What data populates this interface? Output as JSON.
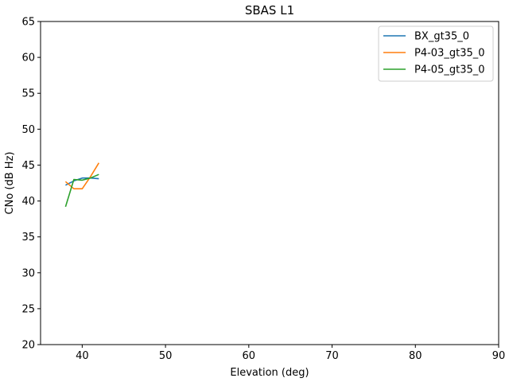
{
  "chart_data": {
    "type": "line",
    "title": "SBAS L1",
    "xlabel": "Elevation (deg)",
    "ylabel": "CNo (dB Hz)",
    "xlim": [
      35,
      90
    ],
    "ylim": [
      20,
      65
    ],
    "xticks": [
      40,
      50,
      60,
      70,
      80,
      90
    ],
    "yticks": [
      20,
      25,
      30,
      35,
      40,
      45,
      50,
      55,
      60,
      65
    ],
    "grid": false,
    "legend_position": "top-right",
    "series": [
      {
        "name": "BX_gt35_0",
        "color": "#1f77b4",
        "x": [
          38,
          39,
          40,
          41,
          42
        ],
        "y": [
          42.2,
          42.8,
          43.2,
          43.2,
          43.1
        ]
      },
      {
        "name": "P4-03_gt35_0",
        "color": "#ff7f0e",
        "x": [
          38,
          39,
          40,
          41,
          42
        ],
        "y": [
          42.7,
          41.7,
          41.7,
          43.4,
          45.3
        ]
      },
      {
        "name": "P4-05_gt35_0",
        "color": "#2ca02c",
        "x": [
          38,
          39,
          40,
          41,
          42
        ],
        "y": [
          39.2,
          43.0,
          42.9,
          43.2,
          43.7
        ]
      }
    ]
  }
}
